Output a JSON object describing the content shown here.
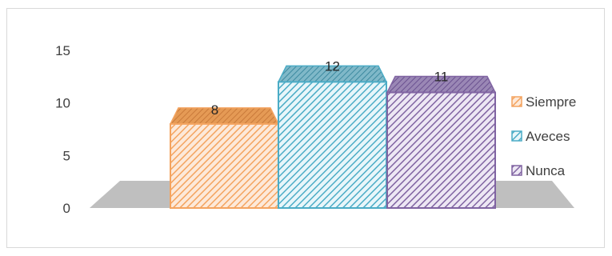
{
  "chart_data": {
    "type": "bar",
    "style": "3d-columns",
    "categories": [
      "Siempre",
      "Aveces",
      "Nunca"
    ],
    "values": [
      8,
      12,
      11
    ],
    "ylim": [
      0,
      15
    ],
    "yticks": [
      0,
      5,
      10,
      15
    ],
    "yticks_text": [
      "0",
      "5",
      "10",
      "15"
    ],
    "data_labels": [
      "8",
      "12",
      "11"
    ],
    "legend": {
      "position": "right",
      "items": [
        {
          "label": "Siempre",
          "color": "#f4a460"
        },
        {
          "label": "Aveces",
          "color": "#4bacc6"
        },
        {
          "label": "Nunca",
          "color": "#8064a2"
        }
      ]
    },
    "grid": false,
    "floor_color": "#bfbfbf"
  }
}
